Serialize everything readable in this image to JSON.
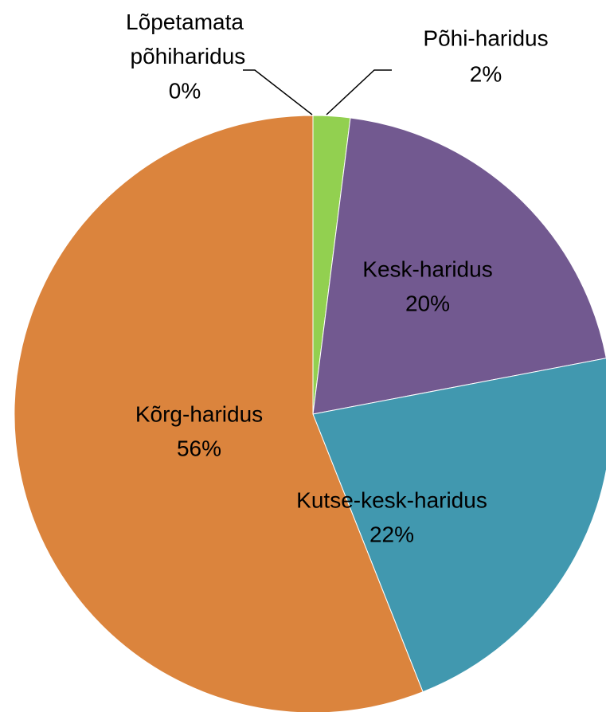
{
  "chart_data": {
    "type": "pie",
    "categories": [
      "Lõpetamata põhiharidus",
      "Põhi-haridus",
      "Kesk-haridus",
      "Kutse-kesk-haridus",
      "Kõrg-haridus"
    ],
    "values": [
      0,
      2,
      20,
      22,
      56
    ],
    "value_labels": [
      "0%",
      "2%",
      "20%",
      "22%",
      "56%"
    ],
    "colors": [
      "#4f81bd",
      "#92d050",
      "#725990",
      "#4198af",
      "#db843d"
    ]
  }
}
